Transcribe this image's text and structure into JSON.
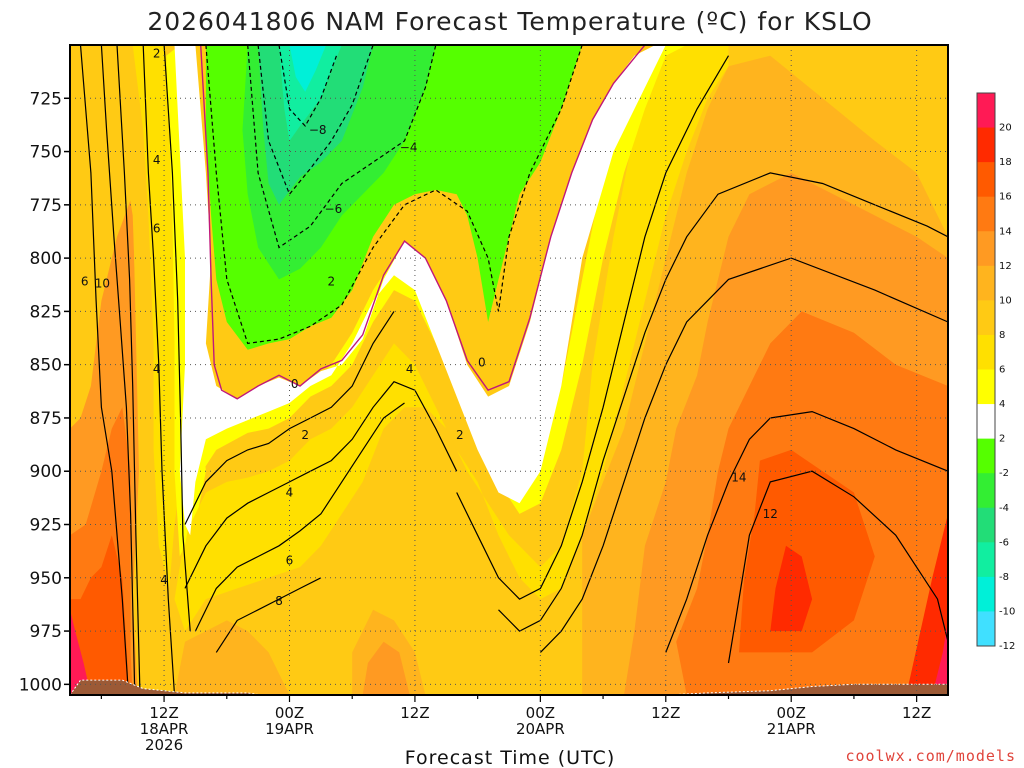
{
  "chart_data": {
    "type": "heatmap",
    "title": "2026041806 NAM Forecast Temperature (ºC) for KSLO",
    "xlabel": "Forecast Time (UTC)",
    "ylabel": "",
    "y_ticks": [
      "725",
      "750",
      "775",
      "800",
      "825",
      "850",
      "875",
      "900",
      "925",
      "950",
      "975",
      "1000"
    ],
    "y_values": [
      725,
      750,
      775,
      800,
      825,
      850,
      875,
      900,
      925,
      950,
      975,
      1000
    ],
    "ylim": [
      1005,
      700
    ],
    "x_ticks": [
      {
        "time": "2026-04-18 12Z",
        "lines": [
          "12Z",
          "18APR",
          "2026"
        ]
      },
      {
        "time": "2026-04-19 00Z",
        "lines": [
          "00Z",
          "19APR"
        ]
      },
      {
        "time": "2026-04-19 12Z",
        "lines": [
          "12Z"
        ]
      },
      {
        "time": "2026-04-20 00Z",
        "lines": [
          "00Z",
          "20APR"
        ]
      },
      {
        "time": "2026-04-20 12Z",
        "lines": [
          "12Z"
        ]
      },
      {
        "time": "2026-04-21 00Z",
        "lines": [
          "00Z",
          "21APR"
        ]
      },
      {
        "time": "2026-04-21 12Z",
        "lines": [
          "12Z"
        ]
      }
    ],
    "x_hours": [
      6,
      12,
      18,
      24,
      30,
      36,
      42,
      48,
      54,
      60,
      66,
      72,
      78,
      84
    ],
    "colorbar": {
      "labels": [
        "20",
        "18",
        "16",
        "14",
        "12",
        "10",
        "8",
        "6",
        "4",
        "2",
        "-2",
        "-4",
        "-6",
        "-8",
        "-10",
        "-12"
      ],
      "colors": [
        "#ff1a55",
        "#ff2a00",
        "#ff5a00",
        "#ff7a12",
        "#ff9a22",
        "#ffb41e",
        "#ffca14",
        "#ffe000",
        "#ffff00",
        "#ffffff",
        "#55ff00",
        "#33ee33",
        "#22dd77",
        "#11eea0",
        "#00f0d8",
        "#40e0ff"
      ]
    },
    "grid": true,
    "contour_labels": [
      {
        "text": "2",
        "hour": 11.3,
        "p": 704
      },
      {
        "text": "4",
        "hour": 11.3,
        "p": 754
      },
      {
        "text": "6",
        "hour": 11.3,
        "p": 786
      },
      {
        "text": "6",
        "hour": 4.4,
        "p": 811
      },
      {
        "text": "10",
        "hour": 6.1,
        "p": 812
      },
      {
        "text": "4",
        "hour": 11.3,
        "p": 852
      },
      {
        "text": "4",
        "hour": 12.0,
        "p": 951
      },
      {
        "text": "−8",
        "hour": 26.7,
        "p": 740
      },
      {
        "text": "−6",
        "hour": 28.2,
        "p": 777
      },
      {
        "text": "2",
        "hour": 28.0,
        "p": 811
      },
      {
        "text": "0",
        "hour": 24.5,
        "p": 859
      },
      {
        "text": "2",
        "hour": 25.5,
        "p": 883
      },
      {
        "text": "4",
        "hour": 24.0,
        "p": 910
      },
      {
        "text": "6",
        "hour": 24.0,
        "p": 942
      },
      {
        "text": "8",
        "hour": 23.0,
        "p": 961
      },
      {
        "text": "−4",
        "hour": 35.4,
        "p": 748
      },
      {
        "text": "4",
        "hour": 35.5,
        "p": 852
      },
      {
        "text": "2",
        "hour": 40.3,
        "p": 883
      },
      {
        "text": "0",
        "hour": 42.4,
        "p": 849
      },
      {
        "text": "14",
        "hour": 67.0,
        "p": 903
      },
      {
        "text": "12",
        "hour": 70.0,
        "p": 920
      }
    ]
  },
  "credit": "coolwx.com/models"
}
